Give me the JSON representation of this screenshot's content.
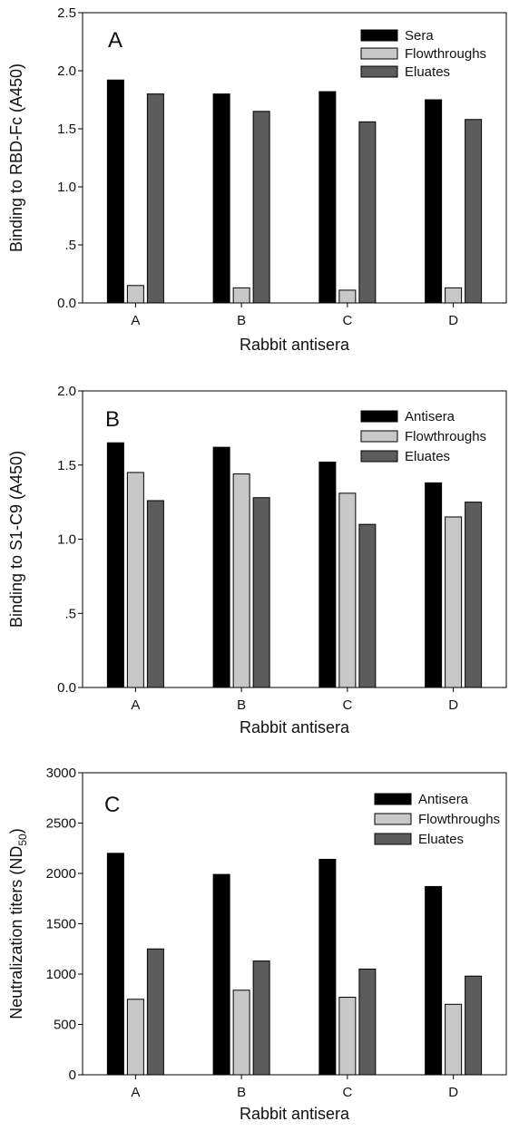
{
  "chart_data": [
    {
      "type": "bar",
      "panel_label": "A",
      "categories": [
        "A",
        "B",
        "C",
        "D"
      ],
      "xlabel": "Rabbit antisera",
      "ylabel": "Binding to RBD-Fc (A450)",
      "ylim": [
        0,
        2.5
      ],
      "yticks": [
        0,
        0.5,
        1.0,
        1.5,
        2.0,
        2.5
      ],
      "ytick_labels": [
        "0.0",
        ".5",
        "1.0",
        "1.5",
        "2.0",
        "2.5"
      ],
      "legend_position": "top-right",
      "grid": false,
      "series": [
        {
          "name": "Sera",
          "color": "#000000",
          "values": [
            1.92,
            1.8,
            1.82,
            1.75
          ]
        },
        {
          "name": "Flowthroughs",
          "color": "#c8c8c8",
          "values": [
            0.15,
            0.13,
            0.11,
            0.13
          ]
        },
        {
          "name": "Eluates",
          "color": "#5c5c5c",
          "values": [
            1.8,
            1.65,
            1.56,
            1.58
          ]
        }
      ]
    },
    {
      "type": "bar",
      "panel_label": "B",
      "categories": [
        "A",
        "B",
        "C",
        "D"
      ],
      "xlabel": "Rabbit antisera",
      "ylabel": "Binding to S1-C9 (A450)",
      "ylim": [
        0,
        2.0
      ],
      "yticks": [
        0,
        0.5,
        1.0,
        1.5,
        2.0
      ],
      "ytick_labels": [
        "0.0",
        ".5",
        "1.0",
        "1.5",
        "2.0"
      ],
      "legend_position": "top-right",
      "grid": false,
      "series": [
        {
          "name": "Antisera",
          "color": "#000000",
          "values": [
            1.65,
            1.62,
            1.52,
            1.38
          ]
        },
        {
          "name": "Flowthroughs",
          "color": "#c8c8c8",
          "values": [
            1.45,
            1.44,
            1.31,
            1.15
          ]
        },
        {
          "name": "Eluates",
          "color": "#5c5c5c",
          "values": [
            1.26,
            1.28,
            1.1,
            1.25
          ]
        }
      ]
    },
    {
      "type": "bar",
      "panel_label": "C",
      "categories": [
        "A",
        "B",
        "C",
        "D"
      ],
      "xlabel": "Rabbit  antisera",
      "ylabel": "Neutralization titers (ND",
      "ylabel_sub": "50",
      "ylabel_end": ")",
      "ylim": [
        0,
        3000
      ],
      "yticks": [
        0,
        500,
        1000,
        1500,
        2000,
        2500,
        3000
      ],
      "ytick_labels": [
        "0",
        "500",
        "1000",
        "1500",
        "2000",
        "2500",
        "3000"
      ],
      "legend_position": "top-right",
      "grid": false,
      "series": [
        {
          "name": "Antisera",
          "color": "#000000",
          "values": [
            2200,
            1990,
            2140,
            1870
          ]
        },
        {
          "name": "Flowthroughs",
          "color": "#c8c8c8",
          "values": [
            750,
            840,
            770,
            700
          ]
        },
        {
          "name": "Eluates",
          "color": "#5c5c5c",
          "values": [
            1250,
            1130,
            1050,
            980
          ]
        }
      ]
    }
  ]
}
